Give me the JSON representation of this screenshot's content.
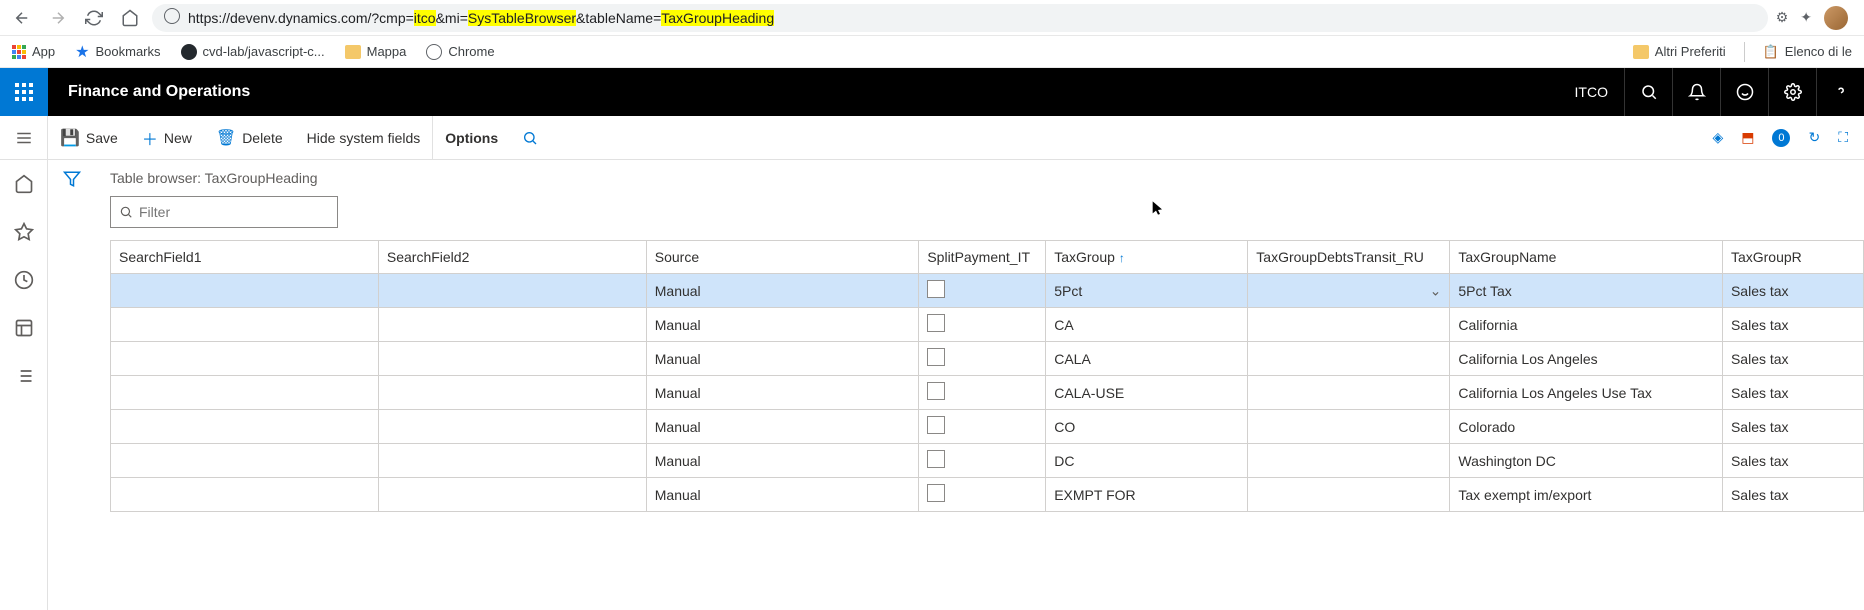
{
  "browser": {
    "url_prefix": "https://devenv.dynamics.com/?cmp=",
    "p1": "itco",
    "p2": "&mi=",
    "p3": "SysTableBrowser",
    "p4": "&tableName=",
    "p5": "TaxGroupHeading"
  },
  "bookmarks": {
    "apps": "App",
    "bookmarks": "Bookmarks",
    "repo": "cvd-lab/javascript-c...",
    "mappa": "Mappa",
    "chrome": "Chrome",
    "altri": "Altri Preferiti",
    "elenco": "Elenco di le"
  },
  "header": {
    "title": "Finance and Operations",
    "company": "ITCO"
  },
  "actions": {
    "save": "Save",
    "new": "New",
    "delete": "Delete",
    "hide": "Hide system fields",
    "options": "Options",
    "badge": "0"
  },
  "page": {
    "title": "Table browser: TaxGroupHeading",
    "filter_placeholder": "Filter"
  },
  "columns": {
    "c0": "SearchField1",
    "c1": "SearchField2",
    "c2": "Source",
    "c3": "SplitPayment_IT",
    "c4": "TaxGroup",
    "c5": "TaxGroupDebtsTransit_RU",
    "c6": "TaxGroupName",
    "c7": "TaxGroupR"
  },
  "widths": {
    "c0": 228,
    "c1": 228,
    "c2": 232,
    "c3": 108,
    "c4": 172,
    "c5": 172,
    "c6": 232,
    "c7": 120
  },
  "rows": [
    {
      "source": "Manual",
      "split": false,
      "group": "5Pct",
      "name": "5Pct Tax",
      "last": "Sales tax",
      "selected": true,
      "chevron": true
    },
    {
      "source": "Manual",
      "split": false,
      "group": "CA",
      "name": "California",
      "last": "Sales tax"
    },
    {
      "source": "Manual",
      "split": false,
      "group": "CALA",
      "name": "California Los Angeles",
      "last": "Sales tax"
    },
    {
      "source": "Manual",
      "split": false,
      "group": "CALA-USE",
      "name": "California  Los Angeles Use Tax",
      "last": "Sales tax"
    },
    {
      "source": "Manual",
      "split": false,
      "group": "CO",
      "name": "Colorado",
      "last": "Sales tax"
    },
    {
      "source": "Manual",
      "split": false,
      "group": "DC",
      "name": "Washington DC",
      "last": "Sales tax"
    },
    {
      "source": "Manual",
      "split": false,
      "group": "EXMPT FOR",
      "name": "Tax exempt im/export",
      "last": "Sales tax"
    }
  ]
}
